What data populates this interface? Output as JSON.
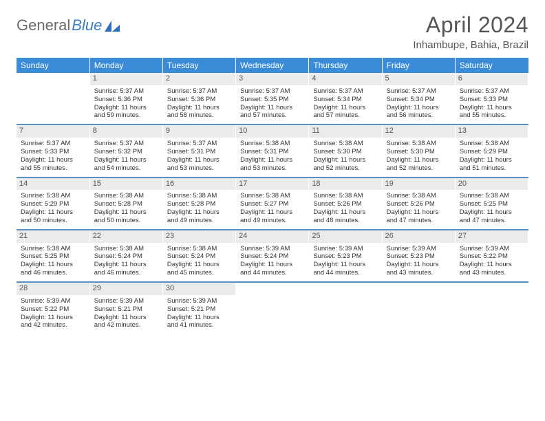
{
  "brand": {
    "part1": "General",
    "part2": "Blue"
  },
  "title": "April 2024",
  "location": "Inhambupe, Bahia, Brazil",
  "colors": {
    "header_bg": "#3a8bd8",
    "row_divider": "#5a8fc0",
    "daynum_bg": "#ebebeb",
    "text": "#333333",
    "title_text": "#555555"
  },
  "weekdays": [
    "Sunday",
    "Monday",
    "Tuesday",
    "Wednesday",
    "Thursday",
    "Friday",
    "Saturday"
  ],
  "weeks": [
    [
      {
        "day": "",
        "sunrise": "",
        "sunset": "",
        "daylight1": "",
        "daylight2": ""
      },
      {
        "day": "1",
        "sunrise": "Sunrise: 5:37 AM",
        "sunset": "Sunset: 5:36 PM",
        "daylight1": "Daylight: 11 hours",
        "daylight2": "and 59 minutes."
      },
      {
        "day": "2",
        "sunrise": "Sunrise: 5:37 AM",
        "sunset": "Sunset: 5:36 PM",
        "daylight1": "Daylight: 11 hours",
        "daylight2": "and 58 minutes."
      },
      {
        "day": "3",
        "sunrise": "Sunrise: 5:37 AM",
        "sunset": "Sunset: 5:35 PM",
        "daylight1": "Daylight: 11 hours",
        "daylight2": "and 57 minutes."
      },
      {
        "day": "4",
        "sunrise": "Sunrise: 5:37 AM",
        "sunset": "Sunset: 5:34 PM",
        "daylight1": "Daylight: 11 hours",
        "daylight2": "and 57 minutes."
      },
      {
        "day": "5",
        "sunrise": "Sunrise: 5:37 AM",
        "sunset": "Sunset: 5:34 PM",
        "daylight1": "Daylight: 11 hours",
        "daylight2": "and 56 minutes."
      },
      {
        "day": "6",
        "sunrise": "Sunrise: 5:37 AM",
        "sunset": "Sunset: 5:33 PM",
        "daylight1": "Daylight: 11 hours",
        "daylight2": "and 55 minutes."
      }
    ],
    [
      {
        "day": "7",
        "sunrise": "Sunrise: 5:37 AM",
        "sunset": "Sunset: 5:33 PM",
        "daylight1": "Daylight: 11 hours",
        "daylight2": "and 55 minutes."
      },
      {
        "day": "8",
        "sunrise": "Sunrise: 5:37 AM",
        "sunset": "Sunset: 5:32 PM",
        "daylight1": "Daylight: 11 hours",
        "daylight2": "and 54 minutes."
      },
      {
        "day": "9",
        "sunrise": "Sunrise: 5:37 AM",
        "sunset": "Sunset: 5:31 PM",
        "daylight1": "Daylight: 11 hours",
        "daylight2": "and 53 minutes."
      },
      {
        "day": "10",
        "sunrise": "Sunrise: 5:38 AM",
        "sunset": "Sunset: 5:31 PM",
        "daylight1": "Daylight: 11 hours",
        "daylight2": "and 53 minutes."
      },
      {
        "day": "11",
        "sunrise": "Sunrise: 5:38 AM",
        "sunset": "Sunset: 5:30 PM",
        "daylight1": "Daylight: 11 hours",
        "daylight2": "and 52 minutes."
      },
      {
        "day": "12",
        "sunrise": "Sunrise: 5:38 AM",
        "sunset": "Sunset: 5:30 PM",
        "daylight1": "Daylight: 11 hours",
        "daylight2": "and 52 minutes."
      },
      {
        "day": "13",
        "sunrise": "Sunrise: 5:38 AM",
        "sunset": "Sunset: 5:29 PM",
        "daylight1": "Daylight: 11 hours",
        "daylight2": "and 51 minutes."
      }
    ],
    [
      {
        "day": "14",
        "sunrise": "Sunrise: 5:38 AM",
        "sunset": "Sunset: 5:29 PM",
        "daylight1": "Daylight: 11 hours",
        "daylight2": "and 50 minutes."
      },
      {
        "day": "15",
        "sunrise": "Sunrise: 5:38 AM",
        "sunset": "Sunset: 5:28 PM",
        "daylight1": "Daylight: 11 hours",
        "daylight2": "and 50 minutes."
      },
      {
        "day": "16",
        "sunrise": "Sunrise: 5:38 AM",
        "sunset": "Sunset: 5:28 PM",
        "daylight1": "Daylight: 11 hours",
        "daylight2": "and 49 minutes."
      },
      {
        "day": "17",
        "sunrise": "Sunrise: 5:38 AM",
        "sunset": "Sunset: 5:27 PM",
        "daylight1": "Daylight: 11 hours",
        "daylight2": "and 49 minutes."
      },
      {
        "day": "18",
        "sunrise": "Sunrise: 5:38 AM",
        "sunset": "Sunset: 5:26 PM",
        "daylight1": "Daylight: 11 hours",
        "daylight2": "and 48 minutes."
      },
      {
        "day": "19",
        "sunrise": "Sunrise: 5:38 AM",
        "sunset": "Sunset: 5:26 PM",
        "daylight1": "Daylight: 11 hours",
        "daylight2": "and 47 minutes."
      },
      {
        "day": "20",
        "sunrise": "Sunrise: 5:38 AM",
        "sunset": "Sunset: 5:25 PM",
        "daylight1": "Daylight: 11 hours",
        "daylight2": "and 47 minutes."
      }
    ],
    [
      {
        "day": "21",
        "sunrise": "Sunrise: 5:38 AM",
        "sunset": "Sunset: 5:25 PM",
        "daylight1": "Daylight: 11 hours",
        "daylight2": "and 46 minutes."
      },
      {
        "day": "22",
        "sunrise": "Sunrise: 5:38 AM",
        "sunset": "Sunset: 5:24 PM",
        "daylight1": "Daylight: 11 hours",
        "daylight2": "and 46 minutes."
      },
      {
        "day": "23",
        "sunrise": "Sunrise: 5:38 AM",
        "sunset": "Sunset: 5:24 PM",
        "daylight1": "Daylight: 11 hours",
        "daylight2": "and 45 minutes."
      },
      {
        "day": "24",
        "sunrise": "Sunrise: 5:39 AM",
        "sunset": "Sunset: 5:24 PM",
        "daylight1": "Daylight: 11 hours",
        "daylight2": "and 44 minutes."
      },
      {
        "day": "25",
        "sunrise": "Sunrise: 5:39 AM",
        "sunset": "Sunset: 5:23 PM",
        "daylight1": "Daylight: 11 hours",
        "daylight2": "and 44 minutes."
      },
      {
        "day": "26",
        "sunrise": "Sunrise: 5:39 AM",
        "sunset": "Sunset: 5:23 PM",
        "daylight1": "Daylight: 11 hours",
        "daylight2": "and 43 minutes."
      },
      {
        "day": "27",
        "sunrise": "Sunrise: 5:39 AM",
        "sunset": "Sunset: 5:22 PM",
        "daylight1": "Daylight: 11 hours",
        "daylight2": "and 43 minutes."
      }
    ],
    [
      {
        "day": "28",
        "sunrise": "Sunrise: 5:39 AM",
        "sunset": "Sunset: 5:22 PM",
        "daylight1": "Daylight: 11 hours",
        "daylight2": "and 42 minutes."
      },
      {
        "day": "29",
        "sunrise": "Sunrise: 5:39 AM",
        "sunset": "Sunset: 5:21 PM",
        "daylight1": "Daylight: 11 hours",
        "daylight2": "and 42 minutes."
      },
      {
        "day": "30",
        "sunrise": "Sunrise: 5:39 AM",
        "sunset": "Sunset: 5:21 PM",
        "daylight1": "Daylight: 11 hours",
        "daylight2": "and 41 minutes."
      },
      {
        "day": "",
        "sunrise": "",
        "sunset": "",
        "daylight1": "",
        "daylight2": ""
      },
      {
        "day": "",
        "sunrise": "",
        "sunset": "",
        "daylight1": "",
        "daylight2": ""
      },
      {
        "day": "",
        "sunrise": "",
        "sunset": "",
        "daylight1": "",
        "daylight2": ""
      },
      {
        "day": "",
        "sunrise": "",
        "sunset": "",
        "daylight1": "",
        "daylight2": ""
      }
    ]
  ]
}
